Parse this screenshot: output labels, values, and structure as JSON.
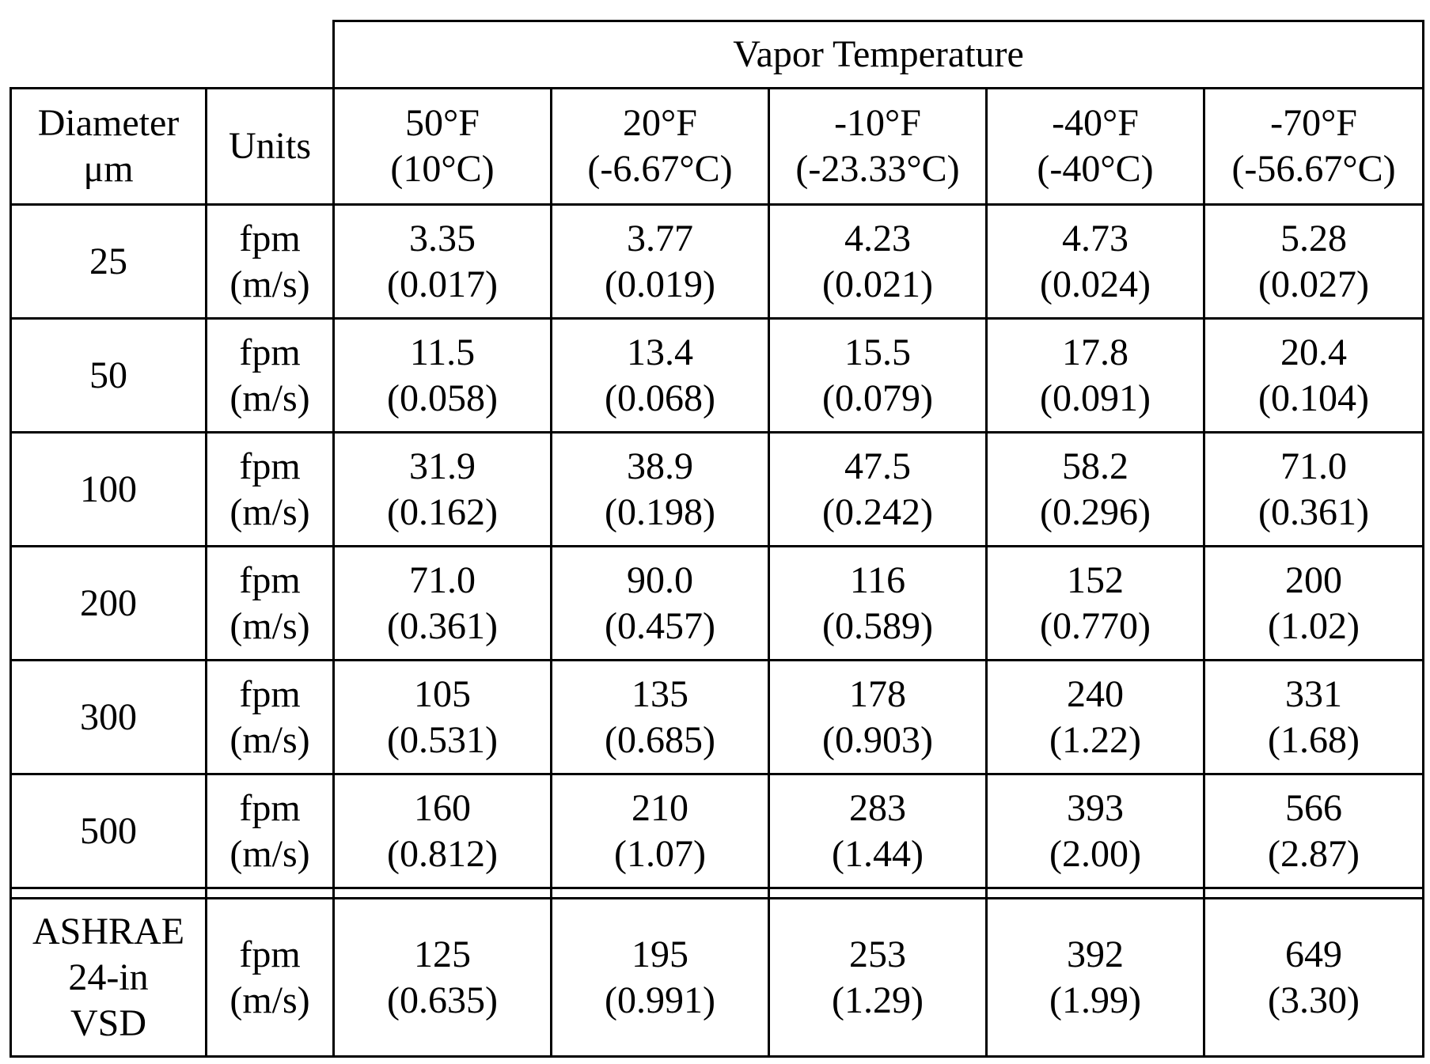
{
  "table": {
    "group_header": "Vapor Temperature",
    "col_headers": {
      "diameter": [
        "Diameter",
        "μm"
      ],
      "units": "Units"
    },
    "temperature_columns": [
      {
        "f": "50°F",
        "c": "(10°C)"
      },
      {
        "f": "20°F",
        "c": "(-6.67°C)"
      },
      {
        "f": "-10°F",
        "c": "(-23.33°C)"
      },
      {
        "f": "-40°F",
        "c": "(-40°C)"
      },
      {
        "f": "-70°F",
        "c": "(-56.67°C)"
      }
    ],
    "rows": [
      {
        "diameter": "25",
        "units": [
          "fpm",
          "(m/s)"
        ],
        "values": [
          [
            "3.35",
            "(0.017)"
          ],
          [
            "3.77",
            "(0.019)"
          ],
          [
            "4.23",
            "(0.021)"
          ],
          [
            "4.73",
            "(0.024)"
          ],
          [
            "5.28",
            "(0.027)"
          ]
        ]
      },
      {
        "diameter": "50",
        "units": [
          "fpm",
          "(m/s)"
        ],
        "values": [
          [
            "11.5",
            "(0.058)"
          ],
          [
            "13.4",
            "(0.068)"
          ],
          [
            "15.5",
            "(0.079)"
          ],
          [
            "17.8",
            "(0.091)"
          ],
          [
            "20.4",
            "(0.104)"
          ]
        ]
      },
      {
        "diameter": "100",
        "units": [
          "fpm",
          "(m/s)"
        ],
        "values": [
          [
            "31.9",
            "(0.162)"
          ],
          [
            "38.9",
            "(0.198)"
          ],
          [
            "47.5",
            "(0.242)"
          ],
          [
            "58.2",
            "(0.296)"
          ],
          [
            "71.0",
            "(0.361)"
          ]
        ]
      },
      {
        "diameter": "200",
        "units": [
          "fpm",
          "(m/s)"
        ],
        "values": [
          [
            "71.0",
            "(0.361)"
          ],
          [
            "90.0",
            "(0.457)"
          ],
          [
            "116",
            "(0.589)"
          ],
          [
            "152",
            "(0.770)"
          ],
          [
            "200",
            "(1.02)"
          ]
        ]
      },
      {
        "diameter": "300",
        "units": [
          "fpm",
          "(m/s)"
        ],
        "values": [
          [
            "105",
            "(0.531)"
          ],
          [
            "135",
            "(0.685)"
          ],
          [
            "178",
            "(0.903)"
          ],
          [
            "240",
            "(1.22)"
          ],
          [
            "331",
            "(1.68)"
          ]
        ]
      },
      {
        "diameter": "500",
        "units": [
          "fpm",
          "(m/s)"
        ],
        "values": [
          [
            "160",
            "(0.812)"
          ],
          [
            "210",
            "(1.07)"
          ],
          [
            "283",
            "(1.44)"
          ],
          [
            "393",
            "(2.00)"
          ],
          [
            "566",
            "(2.87)"
          ]
        ]
      }
    ],
    "summary_row": {
      "label": [
        "ASHRAE",
        "24-in",
        "VSD"
      ],
      "units": [
        "fpm",
        "(m/s)"
      ],
      "values": [
        [
          "125",
          "(0.635)"
        ],
        [
          "195",
          "(0.991)"
        ],
        [
          "253",
          "(1.29)"
        ],
        [
          "392",
          "(1.99)"
        ],
        [
          "649",
          "(3.30)"
        ]
      ]
    }
  }
}
